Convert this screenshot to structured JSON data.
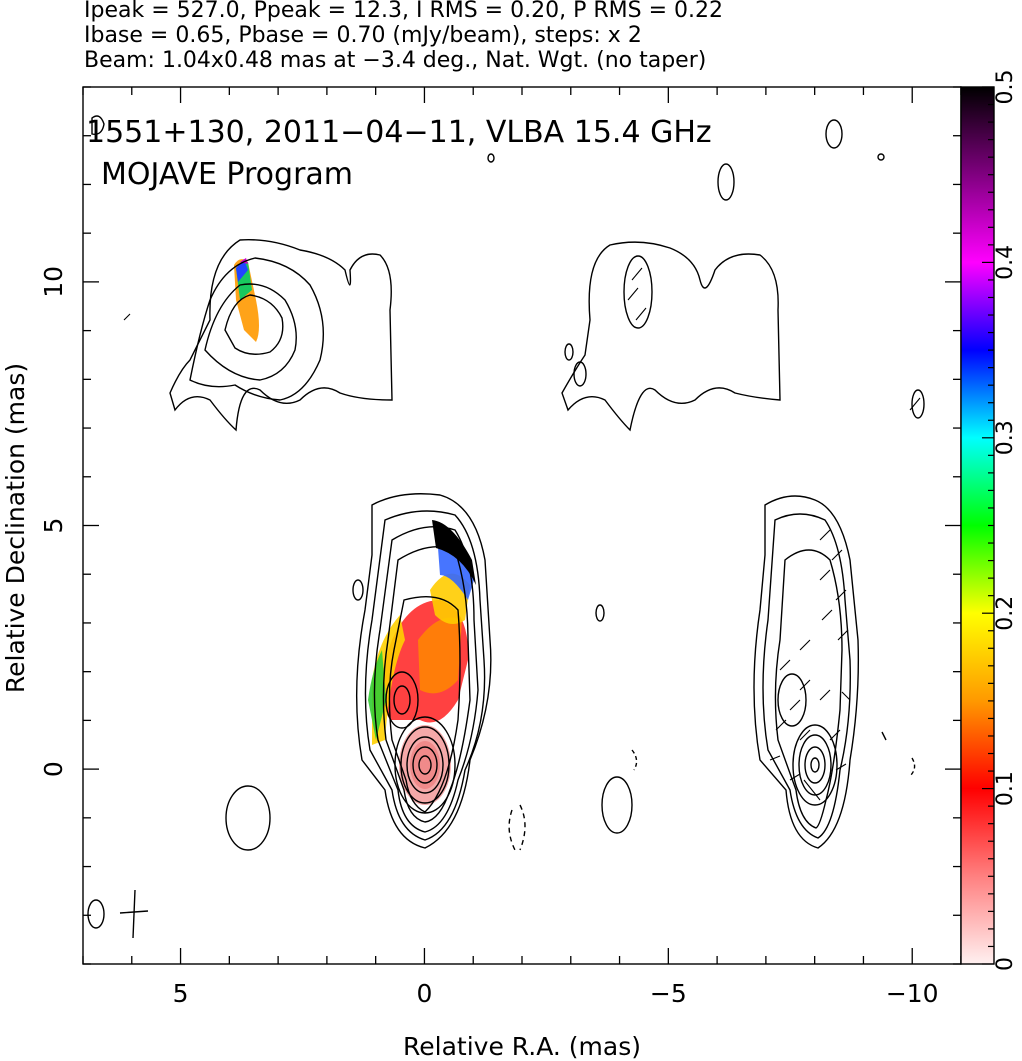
{
  "header": {
    "line1": "Ipeak = 527.0, Ppeak = 12.3, I RMS = 0.20, P RMS = 0.22",
    "line2": "Ibase = 0.65, Pbase = 0.70 (mJy/beam), steps: x 2",
    "line3": "Beam: 1.04x0.48 mas at −3.4 deg., Nat. Wgt. (no taper)"
  },
  "chart_data": {
    "type": "heatmap",
    "title": "1551+130, 2011−04−11, VLBA 15.4 GHz",
    "subtitle": "MOJAVE Program",
    "xlabel": "Relative R.A. (mas)",
    "ylabel": "Relative Declination (mas)",
    "xlim": [
      7,
      -11
    ],
    "ylim": [
      -4,
      14
    ],
    "x_ticks": [
      {
        "value": 5,
        "label": "5"
      },
      {
        "value": 0,
        "label": "0"
      },
      {
        "value": -5,
        "label": "−5"
      },
      {
        "value": -10,
        "label": "−10"
      }
    ],
    "y_ticks": [
      {
        "value": 10,
        "label": "10"
      },
      {
        "value": 5,
        "label": "5"
      },
      {
        "value": 0,
        "label": "0"
      }
    ],
    "colorbar": {
      "range": [
        0,
        0.5
      ],
      "ticks": [
        {
          "value": 0,
          "label": "0"
        },
        {
          "value": 0.1,
          "label": "0.1"
        },
        {
          "value": 0.2,
          "label": "0.2"
        },
        {
          "value": 0.3,
          "label": "0.3"
        },
        {
          "value": 0.4,
          "label": "0.4"
        },
        {
          "value": 0.5,
          "label": "0.5"
        }
      ],
      "stops": [
        "#fff0f0",
        "#ff8080",
        "#ff0000",
        "#ff9900",
        "#ffff00",
        "#00ff00",
        "#00ffff",
        "#0000ff",
        "#ff00ff",
        "#800080",
        "#000000"
      ]
    },
    "contour_color": "#000000"
  }
}
